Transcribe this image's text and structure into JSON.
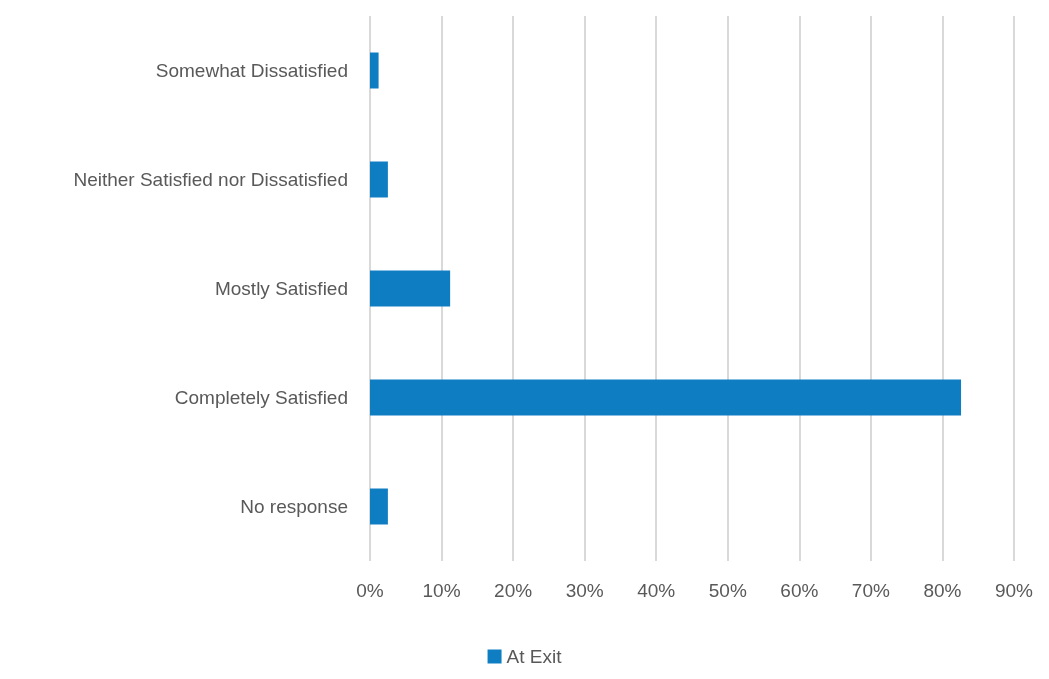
{
  "chart_data": {
    "type": "bar",
    "orientation": "horizontal",
    "categories": [
      "Somewhat Dissatisfied",
      "Neither Satisfied nor Dissatisfied",
      "Mostly Satisfied",
      "Completely Satisfied",
      "No response"
    ],
    "series": [
      {
        "name": "At Exit",
        "color": "#0e7dc2",
        "values": [
          1.2,
          2.5,
          11.2,
          82.6,
          2.5
        ]
      }
    ],
    "xlim": [
      0,
      90
    ],
    "xticks": [
      {
        "value": 0,
        "label": "0%"
      },
      {
        "value": 10,
        "label": "10%"
      },
      {
        "value": 20,
        "label": "20%"
      },
      {
        "value": 30,
        "label": "30%"
      },
      {
        "value": 40,
        "label": "40%"
      },
      {
        "value": 50,
        "label": "50%"
      },
      {
        "value": 60,
        "label": "60%"
      },
      {
        "value": 70,
        "label": "70%"
      },
      {
        "value": 80,
        "label": "80%"
      },
      {
        "value": 90,
        "label": "90%"
      }
    ],
    "grid": "x",
    "legend": "bottom"
  }
}
